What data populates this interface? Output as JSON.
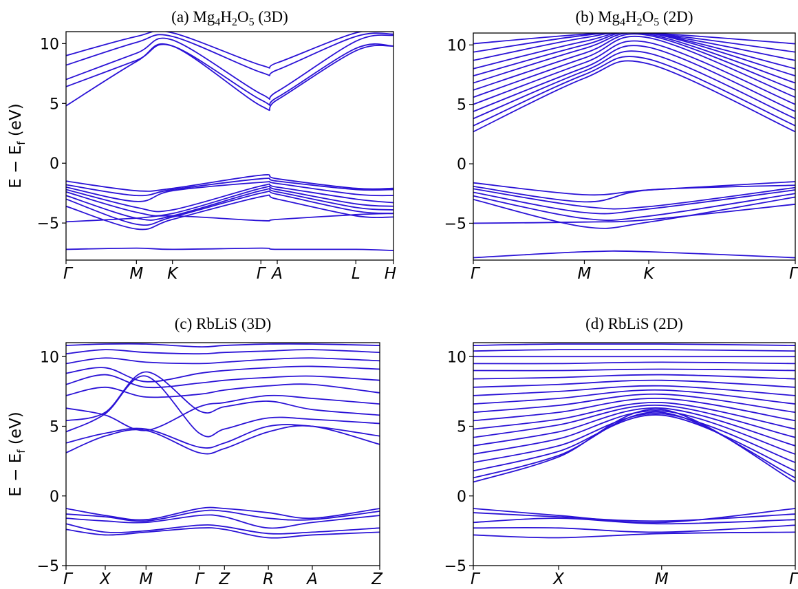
{
  "ylabel_main": "E − E",
  "ylabel_sub": "f",
  "ylabel_unit": "(eV)",
  "chart_data": [
    {
      "id": "a",
      "type": "line",
      "title": "(a) Mg4H2O5 (3D)",
      "title_parts": {
        "prefix": "(a) Mg",
        "s1": "4",
        "m1": "H",
        "s2": "2",
        "m2": "O",
        "s3": "5",
        "suffix": " (3D)"
      },
      "ylabel": "E − Ef (eV)",
      "ylim": [
        -8.1,
        11
      ],
      "yticks": [
        10,
        5,
        0,
        -5
      ],
      "kpath": [
        "Γ",
        "M",
        "K",
        "Γ",
        "A",
        "L",
        "H"
      ],
      "kpos": [
        0,
        0.215,
        0.325,
        0.595,
        0.645,
        0.885,
        1.0
      ],
      "series": [
        {
          "values": [
            -7.2,
            -7.1,
            -7.2,
            -7.1,
            -7.2,
            -7.2,
            -7.3
          ]
        },
        {
          "values": [
            -4.9,
            -4.6,
            -4.4,
            -4.8,
            -4.7,
            -4.3,
            -4.2
          ]
        },
        {
          "values": [
            -3.6,
            -5.5,
            -4.7,
            -2.8,
            -3.0,
            -4.4,
            -4.5
          ]
        },
        {
          "values": [
            -3.0,
            -5.1,
            -4.5,
            -2.5,
            -2.6,
            -4.0,
            -4.2
          ]
        },
        {
          "values": [
            -2.7,
            -4.6,
            -4.4,
            -2.3,
            -2.4,
            -3.7,
            -3.9
          ]
        },
        {
          "values": [
            -2.4,
            -4.1,
            -4.2,
            -2.1,
            -2.2,
            -3.4,
            -3.6
          ]
        },
        {
          "values": [
            -2.2,
            -3.7,
            -3.9,
            -1.9,
            -2.0,
            -3.0,
            -3.3
          ]
        },
        {
          "values": [
            -2.0,
            -3.2,
            -2.3,
            -1.6,
            -1.7,
            -2.6,
            -2.7
          ]
        },
        {
          "values": [
            -1.8,
            -2.7,
            -2.2,
            -1.3,
            -1.5,
            -2.2,
            -2.2
          ]
        },
        {
          "values": [
            -1.5,
            -2.3,
            -2.1,
            -1.0,
            -1.3,
            -2.1,
            -2.1
          ]
        },
        {
          "values": [
            4.8,
            8.5,
            9.8,
            4.8,
            5.3,
            9.4,
            9.8
          ]
        },
        {
          "values": [
            6.4,
            8.6,
            9.8,
            5.3,
            5.5,
            9.6,
            9.8
          ]
        },
        {
          "values": [
            7.0,
            9.2,
            10.3,
            5.8,
            6.0,
            10.2,
            10.7
          ]
        },
        {
          "values": [
            8.2,
            10.1,
            10.6,
            7.6,
            7.8,
            10.6,
            10.8
          ]
        },
        {
          "values": [
            9.0,
            10.6,
            10.9,
            8.2,
            8.4,
            10.9,
            11.0
          ]
        }
      ]
    },
    {
      "id": "b",
      "type": "line",
      "title": "(b) Mg4H2O5 (2D)",
      "title_parts": {
        "prefix": "(b) Mg",
        "s1": "4",
        "m1": "H",
        "s2": "2",
        "m2": "O",
        "s3": "5",
        "suffix": " (2D)"
      },
      "ylabel": "E − Ef (eV)",
      "ylim": [
        -8.1,
        11
      ],
      "yticks": [
        10,
        5,
        0,
        -5
      ],
      "kpath": [
        "Γ",
        "M",
        "K",
        "Γ"
      ],
      "kpos": [
        0,
        0.345,
        0.545,
        1.0
      ],
      "series": [
        {
          "values": [
            -7.9,
            -7.4,
            -7.4,
            -7.9
          ]
        },
        {
          "values": [
            -5.0,
            -4.9,
            -4.7,
            -3.4
          ]
        },
        {
          "values": [
            -3.0,
            -5.3,
            -4.9,
            -2.8
          ]
        },
        {
          "values": [
            -2.7,
            -4.6,
            -4.4,
            -2.5
          ]
        },
        {
          "values": [
            -2.4,
            -4.1,
            -3.8,
            -2.2
          ]
        },
        {
          "values": [
            -2.1,
            -3.6,
            -3.6,
            -2.0
          ]
        },
        {
          "values": [
            -1.9,
            -3.2,
            -2.2,
            -1.8
          ]
        },
        {
          "values": [
            -1.6,
            -2.6,
            -2.2,
            -1.5
          ]
        },
        {
          "values": [
            2.7,
            7.2,
            8.4,
            2.7
          ]
        },
        {
          "values": [
            3.2,
            7.5,
            8.8,
            3.2
          ]
        },
        {
          "values": [
            3.8,
            7.8,
            9.3,
            3.8
          ]
        },
        {
          "values": [
            4.4,
            8.1,
            9.8,
            4.4
          ]
        },
        {
          "values": [
            5.0,
            8.5,
            10.2,
            5.0
          ]
        },
        {
          "values": [
            5.6,
            8.9,
            10.6,
            5.6
          ]
        },
        {
          "values": [
            6.2,
            9.3,
            10.8,
            6.2
          ]
        },
        {
          "values": [
            6.8,
            9.7,
            10.9,
            6.8
          ]
        },
        {
          "values": [
            7.4,
            10.0,
            11.0,
            7.4
          ]
        },
        {
          "values": [
            8.0,
            10.3,
            11.0,
            8.0
          ]
        },
        {
          "values": [
            8.7,
            10.6,
            11.0,
            8.7
          ]
        },
        {
          "values": [
            9.4,
            10.8,
            11.0,
            9.4
          ]
        },
        {
          "values": [
            10.1,
            10.9,
            11.0,
            10.1
          ]
        }
      ]
    },
    {
      "id": "c",
      "type": "line",
      "title": "(c) RbLiS (3D)",
      "title_parts": {
        "prefix": "(c) RbLiS",
        "s1": "",
        "m1": "",
        "s2": "",
        "m2": "",
        "s3": "",
        "suffix": " (3D)"
      },
      "ylabel": "E − Ef (eV)",
      "ylim": [
        -5,
        11
      ],
      "yticks": [
        10,
        5,
        0,
        -5
      ],
      "kpath": [
        "Γ",
        "X",
        "M",
        "Γ",
        "Z",
        "R",
        "A",
        "Z"
      ],
      "kpos": [
        0,
        0.125,
        0.255,
        0.425,
        0.505,
        0.645,
        0.785,
        1.0
      ],
      "series": [
        {
          "values": [
            -2.4,
            -2.8,
            -2.6,
            -2.3,
            -2.4,
            -3.0,
            -2.8,
            -2.6
          ]
        },
        {
          "values": [
            -2.0,
            -2.6,
            -2.5,
            -2.1,
            -2.2,
            -2.7,
            -2.6,
            -2.3
          ]
        },
        {
          "values": [
            -1.6,
            -1.8,
            -1.9,
            -1.4,
            -1.5,
            -2.3,
            -1.9,
            -1.4
          ]
        },
        {
          "values": [
            -1.3,
            -1.5,
            -1.8,
            -1.1,
            -1.1,
            -1.6,
            -1.7,
            -1.1
          ]
        },
        {
          "values": [
            -0.9,
            -1.4,
            -1.7,
            -0.9,
            -0.9,
            -1.2,
            -1.6,
            -0.9
          ]
        },
        {
          "values": [
            3.1,
            4.3,
            4.7,
            3.1,
            3.4,
            4.6,
            5.0,
            3.7
          ]
        },
        {
          "values": [
            3.8,
            4.5,
            4.8,
            3.5,
            3.8,
            5.0,
            5.0,
            4.3
          ]
        },
        {
          "values": [
            4.6,
            5.9,
            8.6,
            4.5,
            4.8,
            5.6,
            5.5,
            5.2
          ]
        },
        {
          "values": [
            5.4,
            6.0,
            8.9,
            6.1,
            6.4,
            6.8,
            6.2,
            5.8
          ]
        },
        {
          "values": [
            6.3,
            5.8,
            4.7,
            6.4,
            6.7,
            7.2,
            7.0,
            6.6
          ]
        },
        {
          "values": [
            7.2,
            7.8,
            7.1,
            7.3,
            7.6,
            7.9,
            8.0,
            7.4
          ]
        },
        {
          "values": [
            8.0,
            8.7,
            7.8,
            8.1,
            8.3,
            8.5,
            8.6,
            8.3
          ]
        },
        {
          "values": [
            8.8,
            9.2,
            8.2,
            8.8,
            9.0,
            9.2,
            9.3,
            9.1
          ]
        },
        {
          "values": [
            9.5,
            9.9,
            9.6,
            9.5,
            9.6,
            9.8,
            9.9,
            9.7
          ]
        },
        {
          "values": [
            10.2,
            10.5,
            10.3,
            10.2,
            10.3,
            10.4,
            10.5,
            10.3
          ]
        },
        {
          "values": [
            10.8,
            10.9,
            10.9,
            10.7,
            10.8,
            10.9,
            10.9,
            10.8
          ]
        }
      ]
    },
    {
      "id": "d",
      "type": "line",
      "title": "(d) RbLiS (2D)",
      "title_parts": {
        "prefix": "(d) RbLiS",
        "s1": "",
        "m1": "",
        "s2": "",
        "m2": "",
        "s3": "",
        "suffix": " (2D)"
      },
      "ylabel": "E − Ef (eV)",
      "ylim": [
        -5,
        11
      ],
      "yticks": [
        10,
        5,
        0,
        -5
      ],
      "kpath": [
        "Γ",
        "X",
        "M",
        "Γ"
      ],
      "kpos": [
        0,
        0.265,
        0.585,
        1.0
      ],
      "series": [
        {
          "values": [
            -2.8,
            -3.0,
            -2.7,
            -2.6
          ]
        },
        {
          "values": [
            -2.3,
            -2.3,
            -2.6,
            -2.1
          ]
        },
        {
          "values": [
            -1.9,
            -1.6,
            -2.0,
            -1.7
          ]
        },
        {
          "values": [
            -1.2,
            -1.5,
            -1.8,
            -1.3
          ]
        },
        {
          "values": [
            -0.9,
            -1.4,
            -1.9,
            -0.9
          ]
        },
        {
          "values": [
            1.0,
            2.8,
            6.2,
            1.0
          ]
        },
        {
          "values": [
            1.3,
            2.9,
            6.0,
            1.3
          ]
        },
        {
          "values": [
            1.8,
            3.2,
            5.8,
            1.8
          ]
        },
        {
          "values": [
            2.4,
            3.6,
            5.9,
            2.4
          ]
        },
        {
          "values": [
            3.0,
            4.1,
            6.1,
            3.0
          ]
        },
        {
          "values": [
            3.6,
            4.6,
            6.3,
            3.6
          ]
        },
        {
          "values": [
            4.2,
            5.1,
            6.5,
            4.2
          ]
        },
        {
          "values": [
            4.8,
            5.5,
            6.7,
            4.8
          ]
        },
        {
          "values": [
            5.4,
            6.0,
            7.0,
            5.4
          ]
        },
        {
          "values": [
            6.0,
            6.5,
            7.3,
            6.0
          ]
        },
        {
          "values": [
            6.6,
            7.0,
            7.6,
            6.6
          ]
        },
        {
          "values": [
            7.2,
            7.5,
            7.9,
            7.2
          ]
        },
        {
          "values": [
            7.8,
            8.0,
            8.3,
            7.8
          ]
        },
        {
          "values": [
            8.4,
            8.5,
            8.7,
            8.4
          ]
        },
        {
          "values": [
            9.0,
            9.0,
            9.1,
            9.0
          ]
        },
        {
          "values": [
            9.5,
            9.5,
            9.6,
            9.5
          ]
        },
        {
          "values": [
            10.0,
            10.0,
            10.0,
            10.0
          ]
        },
        {
          "values": [
            10.4,
            10.5,
            10.5,
            10.4
          ]
        },
        {
          "values": [
            10.8,
            10.9,
            10.9,
            10.8
          ]
        }
      ]
    }
  ]
}
